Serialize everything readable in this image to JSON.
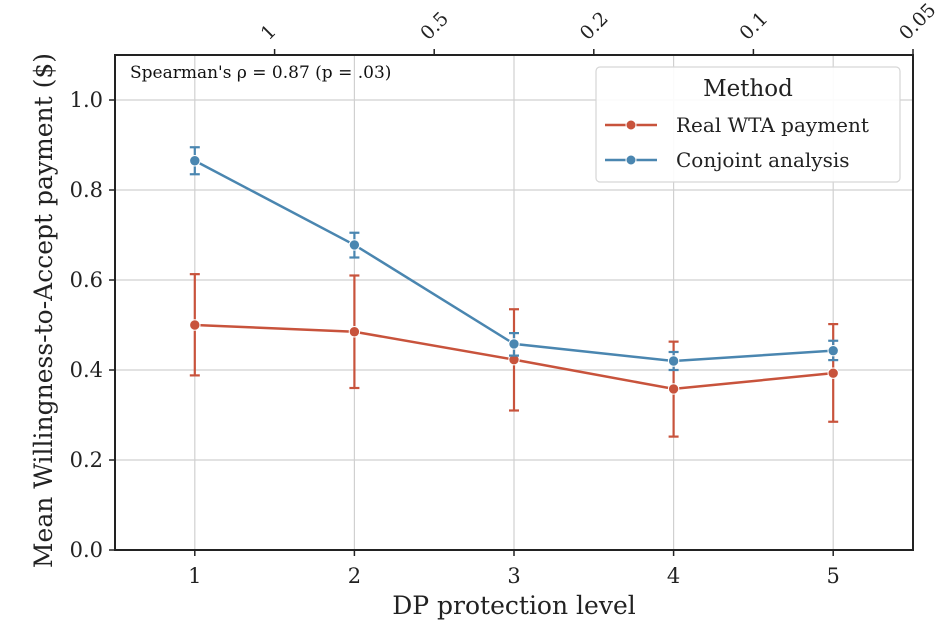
{
  "chart_data": {
    "type": "line",
    "xlabel": "DP protection level",
    "ylabel": "Mean Willingness-to-Accept payment ($)",
    "x_ticks": [
      1,
      2,
      3,
      4,
      5
    ],
    "xlim": [
      0.5,
      5.5
    ],
    "ylim": [
      0.0,
      1.1
    ],
    "y_ticks": [
      "0.0",
      "0.2",
      "0.4",
      "0.6",
      "0.8",
      "1.0"
    ],
    "y_tick_values": [
      0.0,
      0.2,
      0.4,
      0.6,
      0.8,
      1.0
    ],
    "grid": true,
    "top_axis": {
      "tick_labels": [
        "1",
        "0.5",
        "0.2",
        "0.1",
        "0.05"
      ],
      "tick_positions": [
        1.5,
        2.5,
        3.5,
        4.5,
        5.5
      ]
    },
    "annotation": "Spearman's ρ = 0.87 (p = .03)",
    "legend": {
      "title": "Method",
      "position": "top-right"
    },
    "series": [
      {
        "name": "Real WTA payment",
        "color": "#c8533c",
        "x": [
          1,
          2,
          3,
          4,
          5
        ],
        "y": [
          0.5,
          0.485,
          0.423,
          0.358,
          0.393
        ],
        "err_low": [
          0.388,
          0.36,
          0.31,
          0.252,
          0.285
        ],
        "err_high": [
          0.613,
          0.61,
          0.535,
          0.463,
          0.502
        ]
      },
      {
        "name": "Conjoint analysis",
        "color": "#4a86b0",
        "x": [
          1,
          2,
          3,
          4,
          5
        ],
        "y": [
          0.865,
          0.678,
          0.458,
          0.42,
          0.443
        ],
        "err_low": [
          0.835,
          0.65,
          0.432,
          0.4,
          0.422
        ],
        "err_high": [
          0.895,
          0.705,
          0.482,
          0.44,
          0.465
        ]
      }
    ]
  }
}
